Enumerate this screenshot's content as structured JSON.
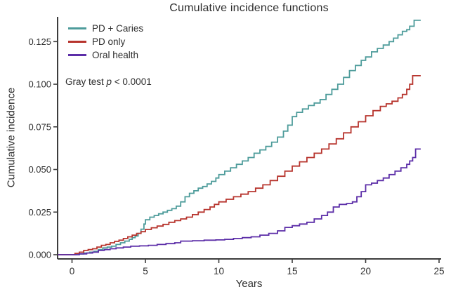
{
  "title": "Cumulative incidence functions",
  "annotation": {
    "prefix": "Gray test ",
    "stat": "p",
    "suffix": " < 0.0001"
  },
  "axes": {
    "x": {
      "label": "Years",
      "tick_labels": [
        "0",
        "5",
        "10",
        "15",
        "20",
        "25"
      ],
      "tick_values": [
        0,
        5,
        10,
        15,
        20,
        25
      ],
      "range": [
        -1,
        25.2
      ]
    },
    "y": {
      "label": "Cumulative incidence",
      "tick_labels": [
        "0.000",
        "0.025",
        "0.050",
        "0.075",
        "0.100",
        "0.125"
      ],
      "tick_values": [
        0,
        0.025,
        0.05,
        0.075,
        0.1,
        0.125
      ],
      "range": [
        0,
        0.14
      ]
    }
  },
  "legend": [
    {
      "label": "PD + Caries",
      "color": "#4E9C9B"
    },
    {
      "label": "PD only",
      "color": "#B7342D"
    },
    {
      "label": "Oral health",
      "color": "#5C2EA8"
    }
  ],
  "colors": {
    "axis": "#3c3c3c",
    "text": "#2e2e2e",
    "background": "#ffffff"
  },
  "chart_data": {
    "type": "line",
    "subtype": "step-after-cumulative-incidence",
    "title": "Cumulative incidence functions",
    "xlabel": "Years",
    "ylabel": "Cumulative incidence",
    "xlim": [
      -1,
      25.2
    ],
    "ylim": [
      0,
      0.14
    ],
    "grid": false,
    "legend_position": "top-left-inside",
    "series": [
      {
        "name": "PD + Caries",
        "color": "#4E9C9B",
        "points": [
          [
            -0.95,
            0
          ],
          [
            0,
            0
          ],
          [
            0.3,
            0.0004
          ],
          [
            0.8,
            0.001
          ],
          [
            1.2,
            0.0015
          ],
          [
            1.5,
            0.002
          ],
          [
            1.8,
            0.003
          ],
          [
            2.1,
            0.004
          ],
          [
            2.4,
            0.0045
          ],
          [
            2.7,
            0.005
          ],
          [
            3.0,
            0.006
          ],
          [
            3.3,
            0.007
          ],
          [
            3.6,
            0.008
          ],
          [
            3.9,
            0.009
          ],
          [
            4.1,
            0.01
          ],
          [
            4.3,
            0.011
          ],
          [
            4.5,
            0.0125
          ],
          [
            4.7,
            0.015
          ],
          [
            4.9,
            0.018
          ],
          [
            5.0,
            0.0205
          ],
          [
            5.3,
            0.022
          ],
          [
            5.6,
            0.023
          ],
          [
            5.9,
            0.024
          ],
          [
            6.2,
            0.025
          ],
          [
            6.5,
            0.026
          ],
          [
            6.8,
            0.027
          ],
          [
            7.1,
            0.0285
          ],
          [
            7.4,
            0.031
          ],
          [
            7.7,
            0.034
          ],
          [
            8.0,
            0.036
          ],
          [
            8.3,
            0.0375
          ],
          [
            8.6,
            0.039
          ],
          [
            8.9,
            0.04
          ],
          [
            9.2,
            0.0415
          ],
          [
            9.5,
            0.043
          ],
          [
            9.8,
            0.045
          ],
          [
            10.0,
            0.047
          ],
          [
            10.4,
            0.049
          ],
          [
            10.8,
            0.051
          ],
          [
            11.2,
            0.053
          ],
          [
            11.6,
            0.055
          ],
          [
            12.0,
            0.057
          ],
          [
            12.4,
            0.0595
          ],
          [
            12.8,
            0.0615
          ],
          [
            13.2,
            0.0635
          ],
          [
            13.6,
            0.066
          ],
          [
            14.0,
            0.069
          ],
          [
            14.4,
            0.0725
          ],
          [
            14.7,
            0.076
          ],
          [
            15.0,
            0.081
          ],
          [
            15.3,
            0.0835
          ],
          [
            15.7,
            0.0855
          ],
          [
            16.1,
            0.0875
          ],
          [
            16.5,
            0.089
          ],
          [
            16.9,
            0.091
          ],
          [
            17.3,
            0.094
          ],
          [
            17.7,
            0.097
          ],
          [
            18.1,
            0.1
          ],
          [
            18.5,
            0.104
          ],
          [
            18.9,
            0.108
          ],
          [
            19.3,
            0.111
          ],
          [
            19.7,
            0.114
          ],
          [
            20.0,
            0.116
          ],
          [
            20.4,
            0.119
          ],
          [
            20.8,
            0.121
          ],
          [
            21.2,
            0.123
          ],
          [
            21.6,
            0.125
          ],
          [
            21.9,
            0.127
          ],
          [
            22.2,
            0.129
          ],
          [
            22.5,
            0.131
          ],
          [
            22.8,
            0.132
          ],
          [
            23.0,
            0.134
          ],
          [
            23.3,
            0.1375
          ],
          [
            23.75,
            0.1375
          ]
        ]
      },
      {
        "name": "PD only",
        "color": "#B7342D",
        "points": [
          [
            -0.95,
            0
          ],
          [
            0,
            0
          ],
          [
            0.2,
            0.0008
          ],
          [
            0.5,
            0.0015
          ],
          [
            0.8,
            0.0025
          ],
          [
            1.1,
            0.003
          ],
          [
            1.4,
            0.0035
          ],
          [
            1.7,
            0.0045
          ],
          [
            2.0,
            0.0055
          ],
          [
            2.3,
            0.006
          ],
          [
            2.6,
            0.007
          ],
          [
            2.9,
            0.0078
          ],
          [
            3.2,
            0.0085
          ],
          [
            3.5,
            0.0095
          ],
          [
            3.8,
            0.0105
          ],
          [
            4.1,
            0.0115
          ],
          [
            4.4,
            0.0125
          ],
          [
            4.7,
            0.0135
          ],
          [
            5.0,
            0.0148
          ],
          [
            5.4,
            0.0158
          ],
          [
            5.8,
            0.0168
          ],
          [
            6.2,
            0.0178
          ],
          [
            6.6,
            0.019
          ],
          [
            7.0,
            0.02
          ],
          [
            7.4,
            0.021
          ],
          [
            7.8,
            0.022
          ],
          [
            8.2,
            0.0235
          ],
          [
            8.6,
            0.025
          ],
          [
            9.0,
            0.0265
          ],
          [
            9.4,
            0.028
          ],
          [
            9.7,
            0.0295
          ],
          [
            10.0,
            0.031
          ],
          [
            10.5,
            0.0325
          ],
          [
            11.0,
            0.034
          ],
          [
            11.5,
            0.0355
          ],
          [
            12.0,
            0.037
          ],
          [
            12.5,
            0.039
          ],
          [
            13.0,
            0.041
          ],
          [
            13.5,
            0.0435
          ],
          [
            14.0,
            0.046
          ],
          [
            14.5,
            0.049
          ],
          [
            15.0,
            0.052
          ],
          [
            15.5,
            0.0545
          ],
          [
            16.0,
            0.057
          ],
          [
            16.5,
            0.0595
          ],
          [
            17.0,
            0.062
          ],
          [
            17.5,
            0.065
          ],
          [
            18.0,
            0.068
          ],
          [
            18.5,
            0.0715
          ],
          [
            19.0,
            0.075
          ],
          [
            19.5,
            0.078
          ],
          [
            20.0,
            0.0815
          ],
          [
            20.5,
            0.0845
          ],
          [
            21.0,
            0.087
          ],
          [
            21.4,
            0.0885
          ],
          [
            21.8,
            0.09
          ],
          [
            22.2,
            0.092
          ],
          [
            22.5,
            0.094
          ],
          [
            22.8,
            0.097
          ],
          [
            23.0,
            0.1
          ],
          [
            23.2,
            0.105
          ],
          [
            23.75,
            0.105
          ]
        ]
      },
      {
        "name": "Oral health",
        "color": "#5C2EA8",
        "points": [
          [
            -0.95,
            0
          ],
          [
            0,
            0
          ],
          [
            0.5,
            0.0005
          ],
          [
            1.0,
            0.001
          ],
          [
            1.4,
            0.0015
          ],
          [
            1.8,
            0.0025
          ],
          [
            2.2,
            0.003
          ],
          [
            2.6,
            0.0035
          ],
          [
            3.0,
            0.004
          ],
          [
            3.5,
            0.0045
          ],
          [
            4.0,
            0.005
          ],
          [
            4.6,
            0.0052
          ],
          [
            5.2,
            0.0055
          ],
          [
            5.8,
            0.006
          ],
          [
            6.4,
            0.0065
          ],
          [
            7.0,
            0.007
          ],
          [
            7.4,
            0.008
          ],
          [
            8.2,
            0.0082
          ],
          [
            9.0,
            0.0085
          ],
          [
            9.8,
            0.0087
          ],
          [
            10.4,
            0.009
          ],
          [
            11.0,
            0.0095
          ],
          [
            11.6,
            0.01
          ],
          [
            12.2,
            0.0105
          ],
          [
            12.8,
            0.0115
          ],
          [
            13.4,
            0.0125
          ],
          [
            14.0,
            0.014
          ],
          [
            14.5,
            0.016
          ],
          [
            15.0,
            0.017
          ],
          [
            15.5,
            0.018
          ],
          [
            16.0,
            0.019
          ],
          [
            16.5,
            0.021
          ],
          [
            17.0,
            0.023
          ],
          [
            17.4,
            0.025
          ],
          [
            17.8,
            0.028
          ],
          [
            18.2,
            0.0295
          ],
          [
            18.7,
            0.03
          ],
          [
            19.1,
            0.031
          ],
          [
            19.4,
            0.034
          ],
          [
            19.7,
            0.037
          ],
          [
            20.0,
            0.041
          ],
          [
            20.4,
            0.042
          ],
          [
            20.8,
            0.0435
          ],
          [
            21.2,
            0.045
          ],
          [
            21.6,
            0.047
          ],
          [
            22.0,
            0.049
          ],
          [
            22.4,
            0.051
          ],
          [
            22.8,
            0.053
          ],
          [
            23.0,
            0.055
          ],
          [
            23.2,
            0.057
          ],
          [
            23.4,
            0.062
          ],
          [
            23.75,
            0.062
          ]
        ]
      }
    ],
    "annotation_text": "Gray test p < 0.0001"
  }
}
